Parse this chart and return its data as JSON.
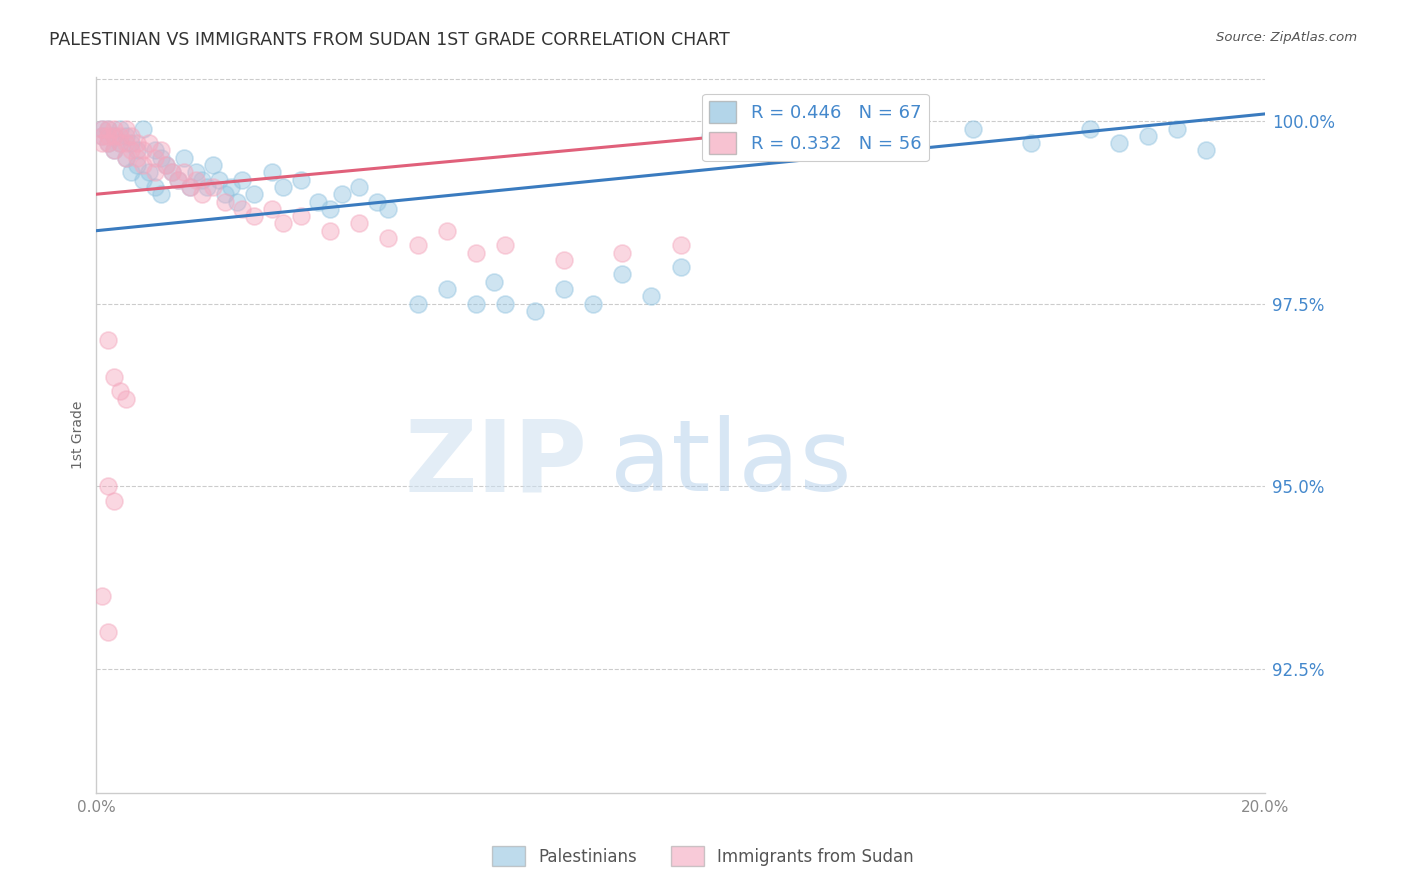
{
  "title": "PALESTINIAN VS IMMIGRANTS FROM SUDAN 1ST GRADE CORRELATION CHART",
  "source": "Source: ZipAtlas.com",
  "ylabel": "1st Grade",
  "ytick_labels": [
    "92.5%",
    "95.0%",
    "97.5%",
    "100.0%"
  ],
  "ytick_values": [
    0.925,
    0.95,
    0.975,
    1.0
  ],
  "xmin": 0.0,
  "xmax": 0.2,
  "ymin": 0.908,
  "ymax": 1.006,
  "watermark_zip": "ZIP",
  "watermark_atlas": "atlas",
  "legend_r1": "R = 0.446",
  "legend_n1": "N = 67",
  "legend_r2": "R = 0.332",
  "legend_n2": "N = 56",
  "blue_color": "#93c4e0",
  "pink_color": "#f4a8be",
  "blue_line_color": "#3a7bbf",
  "pink_line_color": "#e0607a",
  "title_color": "#333333",
  "source_color": "#555555",
  "label_color": "#4488cc",
  "tick_color": "#888888",
  "blue_scatter": [
    [
      0.001,
      0.999
    ],
    [
      0.001,
      0.998
    ],
    [
      0.002,
      0.999
    ],
    [
      0.002,
      0.997
    ],
    [
      0.003,
      0.998
    ],
    [
      0.003,
      0.996
    ],
    [
      0.004,
      0.999
    ],
    [
      0.004,
      0.997
    ],
    [
      0.005,
      0.998
    ],
    [
      0.005,
      0.995
    ],
    [
      0.006,
      0.997
    ],
    [
      0.006,
      0.993
    ],
    [
      0.007,
      0.996
    ],
    [
      0.007,
      0.994
    ],
    [
      0.008,
      0.999
    ],
    [
      0.008,
      0.992
    ],
    [
      0.009,
      0.993
    ],
    [
      0.01,
      0.996
    ],
    [
      0.01,
      0.991
    ],
    [
      0.011,
      0.995
    ],
    [
      0.011,
      0.99
    ],
    [
      0.012,
      0.994
    ],
    [
      0.013,
      0.993
    ],
    [
      0.014,
      0.992
    ],
    [
      0.015,
      0.995
    ],
    [
      0.016,
      0.991
    ],
    [
      0.017,
      0.993
    ],
    [
      0.018,
      0.992
    ],
    [
      0.019,
      0.991
    ],
    [
      0.02,
      0.994
    ],
    [
      0.021,
      0.992
    ],
    [
      0.022,
      0.99
    ],
    [
      0.023,
      0.991
    ],
    [
      0.024,
      0.989
    ],
    [
      0.025,
      0.992
    ],
    [
      0.027,
      0.99
    ],
    [
      0.03,
      0.993
    ],
    [
      0.032,
      0.991
    ],
    [
      0.035,
      0.992
    ],
    [
      0.038,
      0.989
    ],
    [
      0.04,
      0.988
    ],
    [
      0.042,
      0.99
    ],
    [
      0.045,
      0.991
    ],
    [
      0.048,
      0.989
    ],
    [
      0.05,
      0.988
    ],
    [
      0.055,
      0.975
    ],
    [
      0.06,
      0.977
    ],
    [
      0.065,
      0.975
    ],
    [
      0.068,
      0.978
    ],
    [
      0.07,
      0.975
    ],
    [
      0.075,
      0.974
    ],
    [
      0.08,
      0.977
    ],
    [
      0.085,
      0.975
    ],
    [
      0.09,
      0.979
    ],
    [
      0.095,
      0.976
    ],
    [
      0.1,
      0.98
    ],
    [
      0.105,
      0.998
    ],
    [
      0.108,
      0.999
    ],
    [
      0.12,
      0.997
    ],
    [
      0.13,
      0.999
    ],
    [
      0.15,
      0.999
    ],
    [
      0.16,
      0.997
    ],
    [
      0.17,
      0.999
    ],
    [
      0.175,
      0.997
    ],
    [
      0.18,
      0.998
    ],
    [
      0.185,
      0.999
    ],
    [
      0.19,
      0.996
    ]
  ],
  "pink_scatter": [
    [
      0.001,
      0.999
    ],
    [
      0.001,
      0.998
    ],
    [
      0.001,
      0.997
    ],
    [
      0.002,
      0.999
    ],
    [
      0.002,
      0.998
    ],
    [
      0.002,
      0.997
    ],
    [
      0.003,
      0.999
    ],
    [
      0.003,
      0.998
    ],
    [
      0.003,
      0.996
    ],
    [
      0.004,
      0.998
    ],
    [
      0.004,
      0.997
    ],
    [
      0.005,
      0.999
    ],
    [
      0.005,
      0.997
    ],
    [
      0.005,
      0.995
    ],
    [
      0.006,
      0.998
    ],
    [
      0.006,
      0.996
    ],
    [
      0.007,
      0.997
    ],
    [
      0.007,
      0.995
    ],
    [
      0.008,
      0.996
    ],
    [
      0.008,
      0.994
    ],
    [
      0.009,
      0.997
    ],
    [
      0.01,
      0.995
    ],
    [
      0.01,
      0.993
    ],
    [
      0.011,
      0.996
    ],
    [
      0.012,
      0.994
    ],
    [
      0.013,
      0.993
    ],
    [
      0.014,
      0.992
    ],
    [
      0.015,
      0.993
    ],
    [
      0.016,
      0.991
    ],
    [
      0.017,
      0.992
    ],
    [
      0.018,
      0.99
    ],
    [
      0.02,
      0.991
    ],
    [
      0.022,
      0.989
    ],
    [
      0.025,
      0.988
    ],
    [
      0.027,
      0.987
    ],
    [
      0.03,
      0.988
    ],
    [
      0.032,
      0.986
    ],
    [
      0.035,
      0.987
    ],
    [
      0.04,
      0.985
    ],
    [
      0.045,
      0.986
    ],
    [
      0.05,
      0.984
    ],
    [
      0.055,
      0.983
    ],
    [
      0.06,
      0.985
    ],
    [
      0.065,
      0.982
    ],
    [
      0.07,
      0.983
    ],
    [
      0.08,
      0.981
    ],
    [
      0.09,
      0.982
    ],
    [
      0.1,
      0.983
    ],
    [
      0.002,
      0.97
    ],
    [
      0.003,
      0.965
    ],
    [
      0.004,
      0.963
    ],
    [
      0.005,
      0.962
    ],
    [
      0.002,
      0.95
    ],
    [
      0.003,
      0.948
    ],
    [
      0.001,
      0.935
    ],
    [
      0.002,
      0.93
    ]
  ],
  "blue_trend_x": [
    0.0,
    0.2
  ],
  "blue_trend_y": [
    0.985,
    1.001
  ],
  "pink_trend_x": [
    0.0,
    0.108
  ],
  "pink_trend_y": [
    0.99,
    0.998
  ]
}
